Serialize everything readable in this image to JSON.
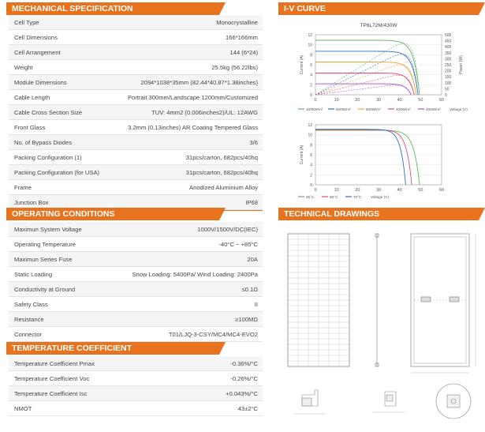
{
  "mech": {
    "title": "MECHANICAL SPECIFICATION",
    "rows": [
      {
        "k": "Cell Type",
        "v": "Monocrystalline"
      },
      {
        "k": "Cell Dimensions",
        "v": "166*166mm"
      },
      {
        "k": "Cell Arrangement",
        "v": "144 (6*24)"
      },
      {
        "k": "Weight",
        "v": "25.5kg (56.22lbs)"
      },
      {
        "k": "Module Dimensions",
        "v": "2094*1038*35mm (82.44*40.87*1.38inches)"
      },
      {
        "k": "Cable Length",
        "v": "Portrait 300mm/Landscape 1200mm/Customized"
      },
      {
        "k": "Cable Cross Section Size",
        "v": "TUV: 4mm2 (0.006inches2)/UL: 12AWG"
      },
      {
        "k": "Front Glass",
        "v": "3.2mm (0.13inches) AR Coating Tempered Glass"
      },
      {
        "k": "No. of Bypass Diodes",
        "v": "3/6"
      },
      {
        "k": "Packing Configuration (1)",
        "v": "31pcs/carton,  682pcs/40hq"
      },
      {
        "k": "Packing Configuration (for USA)",
        "v": "31pcs/carton,  682pcs/40hq"
      },
      {
        "k": "Frame",
        "v": "Anodized Aluminium Alloy"
      },
      {
        "k": "Junction Box",
        "v": "IP68"
      }
    ]
  },
  "oper": {
    "title": "OPERATING CONDITIONS",
    "rows": [
      {
        "k": "Maximun System Voltage",
        "v": "1000V/1500V/DC(IEC)"
      },
      {
        "k": "Operating Temperature",
        "v": "-40°C ~ +85°C"
      },
      {
        "k": "Maximun Series Fuse",
        "v": "20A"
      },
      {
        "k": "Static Loading",
        "v": "Snow Loading: 5400Pa/ Wind Loading: 2400Pa"
      },
      {
        "k": "Conductivity at Ground",
        "v": "≤0.1Ω"
      },
      {
        "k": "Safety Class",
        "v": "II"
      },
      {
        "k": "Resistance",
        "v": "≥100MΩ"
      },
      {
        "k": "Connector",
        "v": "T01/LJQ-3-CSY/MC4/MC4-EVO2"
      }
    ]
  },
  "temp": {
    "title": "TEMPERATURE COEFFICIENT",
    "rows": [
      {
        "k": "Temperature Coefficient Pmax",
        "v": "-0.36%/°C"
      },
      {
        "k": "Temperature Coefficient Voc",
        "v": "-0.26%/°C"
      },
      {
        "k": "Temperature Coefficient Isc",
        "v": "+0.043%/°C"
      },
      {
        "k": "NMOT",
        "v": "43±2°C"
      }
    ]
  },
  "iv": {
    "title": "I-V CURVE",
    "colors": {
      "accent": "#e8731e",
      "green": "#5cb85c",
      "blue": "#2e6fc4",
      "orange": "#f0a030",
      "red": "#e0487a",
      "purple": "#a056c8"
    }
  },
  "drawings": {
    "title": "TECHNICAL DRAWINGS"
  },
  "chart_data": [
    {
      "type": "line",
      "title": "TP6L72M/430W",
      "xlabel": "Voltage (V)",
      "ylabel": "Current (A)",
      "y2label": "Power (W)",
      "xlim": [
        0,
        60
      ],
      "ylim": [
        0,
        12
      ],
      "y2lim": [
        0,
        500
      ],
      "x_ticks": [
        "0",
        "10",
        "20",
        "30",
        "40",
        "50",
        "60"
      ],
      "y_ticks": [
        "0",
        "2",
        "4",
        "6",
        "8",
        "10",
        "12"
      ],
      "y2_ticks": [
        "0",
        "50",
        "100",
        "150",
        "200",
        "250",
        "300",
        "350",
        "400",
        "450",
        "500"
      ],
      "legend_suffix": "W/m²",
      "series": [
        {
          "name": "1000",
          "isc": 10.9,
          "voc": 49.5,
          "color": "#5cb85c"
        },
        {
          "name": "800",
          "isc": 8.7,
          "voc": 48.8,
          "color": "#2e6fc4"
        },
        {
          "name": "600",
          "isc": 6.55,
          "voc": 48.0,
          "color": "#f0a030"
        },
        {
          "name": "400",
          "isc": 4.35,
          "voc": 47.0,
          "color": "#e0487a"
        },
        {
          "name": "200",
          "isc": 2.2,
          "voc": 45.5,
          "color": "#a056c8"
        }
      ]
    },
    {
      "type": "line",
      "xlabel": "Voltage (V)",
      "ylabel": "Current (A)",
      "xlim": [
        0,
        60
      ],
      "ylim": [
        0,
        12
      ],
      "x_ticks": [
        "0",
        "10",
        "20",
        "30",
        "40",
        "50",
        "60"
      ],
      "y_ticks": [
        "0",
        "2",
        "4",
        "6",
        "8",
        "10",
        "12"
      ],
      "series": [
        {
          "name": "25°C",
          "isc": 10.9,
          "voc": 49.5,
          "color": "#5cb85c"
        },
        {
          "name": "50°C",
          "isc": 11.0,
          "voc": 45.8,
          "color": "#e0487a"
        },
        {
          "name": "70°C",
          "isc": 11.1,
          "voc": 42.9,
          "color": "#2e6fc4"
        }
      ]
    }
  ]
}
